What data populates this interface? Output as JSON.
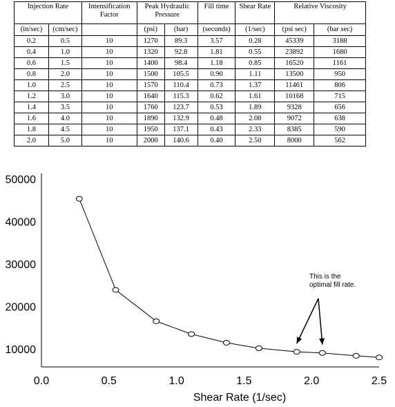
{
  "table": {
    "header": [
      {
        "label": "Injection Rate",
        "colspan": 2
      },
      {
        "label": "Intensification Factor",
        "colspan": 1
      },
      {
        "label": "Peak Hydraulic Pressure",
        "colspan": 2
      },
      {
        "label": "Fill time",
        "colspan": 1
      },
      {
        "label": "Shear Rate",
        "colspan": 1
      },
      {
        "label": "Relative Viscosity",
        "colspan": 2
      }
    ],
    "units": [
      "(in/sec)",
      "(cm/sec)",
      "",
      "(psi)",
      "(bar)",
      "(seconds)",
      "(1/sec)",
      "(psi sec)",
      "(bar sec)"
    ],
    "rows": [
      [
        "0.2",
        "0.5",
        "10",
        "1270",
        "89.3",
        "3.57",
        "0.28",
        "45339",
        "3188"
      ],
      [
        "0.4",
        "1.0",
        "10",
        "1320",
        "92.8",
        "1.81",
        "0.55",
        "23892",
        "1680"
      ],
      [
        "0.6",
        "1.5",
        "10",
        "1400",
        "98.4",
        "1.18",
        "0.85",
        "16520",
        "1161"
      ],
      [
        "0.8",
        "2.0",
        "10",
        "1500",
        "105.5",
        "0.90",
        "1.11",
        "13500",
        "950"
      ],
      [
        "1.0",
        "2.5",
        "10",
        "1570",
        "110.4",
        "0.73",
        "1.37",
        "11461",
        "806"
      ],
      [
        "1.2",
        "3.0",
        "10",
        "1640",
        "115.3",
        "0.62",
        "1.61",
        "10168",
        "715"
      ],
      [
        "1.4",
        "3.5",
        "10",
        "1760",
        "123.7",
        "0.53",
        "1.89",
        "9328",
        "656"
      ],
      [
        "1.6",
        "4.0",
        "10",
        "1890",
        "132.9",
        "0.48",
        "2.08",
        "9072",
        "638"
      ],
      [
        "1.8",
        "4.5",
        "10",
        "1950",
        "137.1",
        "0.43",
        "2.33",
        "8385",
        "590"
      ],
      [
        "2.0",
        "5.0",
        "10",
        "2000",
        "140.6",
        "0.40",
        "2.50",
        "8000",
        "562"
      ]
    ]
  },
  "chart_data": {
    "type": "line",
    "title": "",
    "xlabel": "Shear Rate (1/sec)",
    "ylabel": "",
    "x": [
      0.28,
      0.55,
      0.85,
      1.11,
      1.37,
      1.61,
      1.89,
      2.08,
      2.33,
      2.5
    ],
    "series": [
      {
        "values": [
          45339,
          23892,
          16520,
          13500,
          11461,
          10168,
          9328,
          9072,
          8385,
          8000
        ]
      }
    ],
    "xlim": [
      0.0,
      2.5
    ],
    "ylim": [
      8000,
      50000
    ],
    "xticks": [
      "0.0",
      "0.5",
      "1.0",
      "1.5",
      "2.0",
      "2.5"
    ],
    "yticks": [
      "10000",
      "20000",
      "30000",
      "40000",
      "50000"
    ],
    "marker": "open-circle",
    "grid": false,
    "annotation": {
      "lines": [
        "This is the",
        "optimal fill rate."
      ],
      "arrow_targets": [
        1.89,
        2.08
      ]
    }
  }
}
